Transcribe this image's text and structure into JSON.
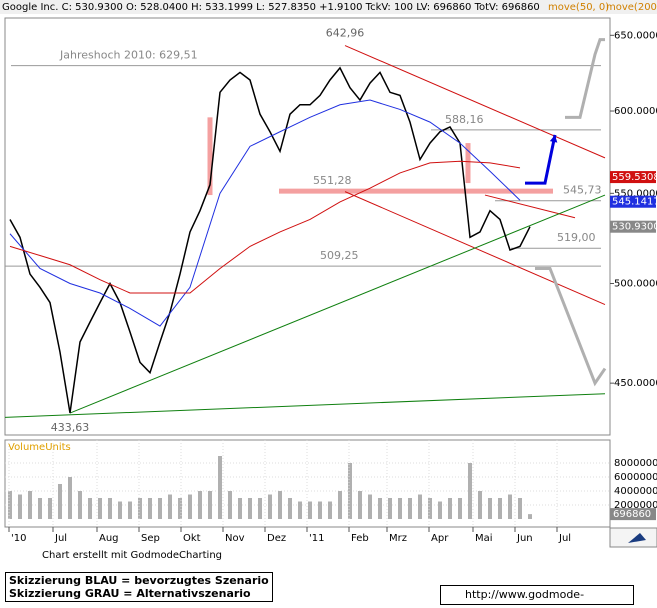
{
  "header": {
    "quote": "Google Inc. C: 530.9300 O: 528.0400 H: 533.1999 L: 527.8350 +1.9100 TckV: 100 LV: 696860 TotV: 696860"
  },
  "chart_data": [
    {
      "type": "line",
      "log_scale": true,
      "xlim": [
        0,
        302.5
      ],
      "ylim": [
        426,
        662
      ],
      "xticks": [
        {
          "value": 2,
          "label": "'10"
        },
        {
          "value": 24,
          "label": "Jul"
        },
        {
          "value": 46,
          "label": "Aug"
        },
        {
          "value": 67,
          "label": "Sep"
        },
        {
          "value": 88,
          "label": "Okt"
        },
        {
          "value": 109,
          "label": "Nov"
        },
        {
          "value": 130,
          "label": "Dez"
        },
        {
          "value": 151,
          "label": "'11"
        },
        {
          "value": 172,
          "label": "Feb"
        },
        {
          "value": 191,
          "label": "Mrz"
        },
        {
          "value": 212,
          "label": "Apr"
        },
        {
          "value": 234,
          "label": "Mai"
        },
        {
          "value": 255,
          "label": "Jun"
        },
        {
          "value": 276,
          "label": "Jul"
        }
      ],
      "yticks": [
        {
          "value": 450,
          "label": "450.0000"
        },
        {
          "value": 500,
          "label": "500.0000"
        },
        {
          "value": 550,
          "label": "550.0000"
        },
        {
          "value": 600,
          "label": "600.0000"
        },
        {
          "value": 650,
          "label": "650.0000"
        }
      ],
      "series": [
        {
          "color": "#000000",
          "x": [
            2.5,
            7.5,
            12.5,
            17.5,
            22.5,
            27.5,
            32.5,
            37.5,
            42.5,
            47.5,
            52.5,
            57.5,
            62.5,
            67.5,
            72.5,
            77.5,
            82.5,
            87.5,
            92.5,
            97.5,
            102.5,
            107.5,
            112.5,
            117.5,
            122.5,
            127.5,
            132.5,
            137.5,
            142.5,
            147.5,
            152.5,
            157.5,
            162.5,
            167.5,
            172.5,
            177.5,
            182.5,
            187.5,
            192.5,
            197.5,
            202.5,
            207.5,
            212.5,
            217.5,
            222.5,
            227.5,
            232.5,
            237.5,
            242.5,
            247.5,
            252.5,
            257.5,
            262.5
          ],
          "values": [
            535,
            525,
            505,
            498,
            490,
            465,
            436,
            470,
            480,
            490,
            500,
            490,
            475,
            460,
            455,
            470,
            485,
            505,
            528,
            540,
            555,
            612,
            620,
            625,
            620,
            598,
            587,
            575,
            598,
            604,
            604,
            610,
            620,
            628,
            615,
            607,
            618,
            625,
            612,
            610,
            593,
            570,
            580,
            587,
            590,
            580,
            525,
            528,
            540,
            535,
            518,
            520,
            530.93
          ]
        },
        {
          "name": "move(50, 0)",
          "color": "#2030e0",
          "x": [
            2.5,
            17.5,
            32.5,
            47.5,
            62.5,
            77.5,
            92.5,
            107.5,
            122.5,
            137.5,
            152.5,
            167.5,
            182.5,
            197.5,
            212.5,
            227.5,
            242.5,
            257.5
          ],
          "values": [
            527,
            508,
            500,
            495,
            487,
            478,
            498,
            550,
            578,
            587,
            596,
            604,
            607,
            601,
            593,
            580,
            563,
            546
          ]
        },
        {
          "name": "move(200, 0)",
          "color": "#d01010",
          "x": [
            2.5,
            17.5,
            32.5,
            47.5,
            62.5,
            77.5,
            92.5,
            107.5,
            122.5,
            137.5,
            152.5,
            167.5,
            182.5,
            197.5,
            212.5,
            227.5,
            242.5,
            257.5
          ],
          "values": [
            520,
            515,
            510,
            502,
            495,
            495,
            495,
            508,
            520,
            528,
            535,
            545,
            553,
            562,
            568,
            569,
            568,
            565
          ]
        }
      ],
      "levels": [
        {
          "value": 629.51,
          "label": "Jahreshoch 2010: 629,51",
          "x": [
            3,
            298
          ],
          "color": "#999999"
        },
        {
          "value": 588.16,
          "label": "588,16",
          "x": [
            213,
            298
          ],
          "color": "#999999"
        },
        {
          "value": 551.28,
          "label": "551,28",
          "x": [
            137,
            274
          ],
          "color": "#f4a0a0"
        },
        {
          "value": 545.73,
          "label": "545,73",
          "x": [
            245,
            298
          ],
          "color": "#999999"
        },
        {
          "value": 519,
          "label": "519,00",
          "x": [
            253,
            298
          ],
          "color": "#999999"
        },
        {
          "value": 509.25,
          "label": "509,25",
          "x": [
            0,
            298
          ],
          "color": "#999999"
        }
      ],
      "point_labels": [
        {
          "x": 170,
          "value": 642.96,
          "label": "642,96"
        },
        {
          "x": 32.5,
          "value": 433.63,
          "label": "433,63"
        }
      ],
      "trend_lines": [
        {
          "color": "#d01010",
          "x": [
            170,
            300
          ],
          "values": [
            643,
            571
          ]
        },
        {
          "color": "#d01010",
          "x": [
            170,
            300
          ],
          "values": [
            551,
            489
          ]
        },
        {
          "color": "#d01010",
          "x": [
            240,
            285
          ],
          "values": [
            549,
            536
          ]
        },
        {
          "color": "#108010",
          "x": [
            32.5,
            300
          ],
          "values": [
            436,
            549
          ]
        },
        {
          "color": "#108010",
          "x": [
            0,
            300
          ],
          "values": [
            434,
            445
          ]
        }
      ],
      "scenarios": [
        {
          "color": "#0000dd",
          "x": [
            260,
            270,
            275
          ],
          "values": [
            556,
            556,
            585
          ]
        },
        {
          "color": "#b0b0b0",
          "x": [
            280,
            287.5,
            295,
            297.5,
            300
          ],
          "values": [
            596,
            596,
            637,
            647,
            647
          ]
        },
        {
          "color": "#b0b0b0",
          "x": [
            265,
            272.5,
            295,
            300
          ],
          "values": [
            508,
            508,
            450,
            457
          ]
        }
      ],
      "highlight_bars": [
        {
          "x": 102.5,
          "values": [
            596,
            549
          ],
          "color": "#f4a0a0"
        },
        {
          "x": 231.5,
          "values": [
            580,
            556
          ],
          "color": "#f4a0a0"
        }
      ],
      "price_tags": [
        {
          "value": 559.5308,
          "color": "#d01010"
        },
        {
          "value": 545.1417,
          "color": "#2030e0"
        },
        {
          "value": 530.93,
          "label": "530.9300",
          "color": "#888888"
        }
      ]
    },
    {
      "type": "bar",
      "title": "VolumeUnits",
      "color": "#b0b0b0",
      "xlim": [
        0,
        302.5
      ],
      "ylim": [
        0,
        10000000
      ],
      "yticks": [
        2000000,
        4000000,
        6000000,
        8000000
      ],
      "x": [
        2.5,
        7.5,
        12.5,
        17.5,
        22.5,
        27.5,
        32.5,
        37.5,
        42.5,
        47.5,
        52.5,
        57.5,
        62.5,
        67.5,
        72.5,
        77.5,
        82.5,
        87.5,
        92.5,
        97.5,
        102.5,
        107.5,
        112.5,
        117.5,
        122.5,
        127.5,
        132.5,
        137.5,
        142.5,
        147.5,
        152.5,
        157.5,
        162.5,
        167.5,
        172.5,
        177.5,
        182.5,
        187.5,
        192.5,
        197.5,
        202.5,
        207.5,
        212.5,
        217.5,
        222.5,
        227.5,
        232.5,
        237.5,
        242.5,
        247.5,
        252.5,
        257.5,
        262.5
      ],
      "values": [
        4000000,
        3500000,
        4000000,
        3000000,
        3000000,
        5000000,
        6000000,
        4000000,
        3000000,
        3000000,
        3000000,
        2500000,
        2500000,
        3000000,
        3000000,
        3000000,
        3500000,
        3000000,
        3500000,
        4000000,
        4000000,
        9000000,
        4000000,
        3000000,
        3000000,
        3000000,
        3500000,
        4000000,
        3000000,
        2500000,
        2500000,
        2500000,
        2500000,
        4000000,
        8000000,
        4000000,
        3500000,
        3000000,
        3000000,
        3000000,
        3000000,
        3500000,
        3000000,
        2500000,
        3000000,
        3000000,
        8000000,
        4000000,
        3000000,
        3000000,
        3500000,
        3000000,
        696860
      ]
    }
  ],
  "footer": {
    "credit": "Chart erstellt mit GodmodeCharting",
    "legend_blue": "Skizzierung BLAU = bevorzugtes Szenario",
    "legend_gray": "Skizzierung GRAU = Alternativszenario",
    "url": "http://www.godmode-trader.de"
  }
}
